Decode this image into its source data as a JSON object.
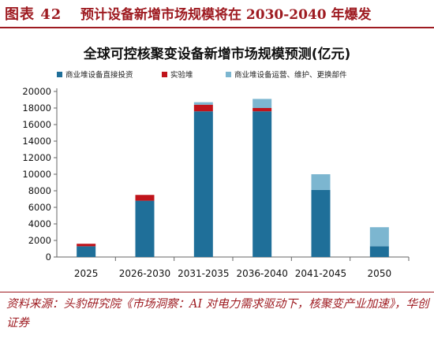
{
  "figure": {
    "number_label": "图表 42",
    "title": "预计设备新增市场规模将在 2030-2040 年爆发",
    "source": "资料来源：头豹研究院《市场洞察：AI 对电力需求驱动下，核聚变产业加速》，华创证券"
  },
  "colors": {
    "accent": "#9e1b21",
    "series_direct": "#1f6f99",
    "series_experimental": "#c0141b",
    "series_ops": "#7cb6d0"
  },
  "chart_data": {
    "type": "bar",
    "stacked": true,
    "title": "全球可控核聚变设备新增市场规模预测(亿元)",
    "categories": [
      "2025",
      "2026-2030",
      "2031-2035",
      "2036-2040",
      "2041-2045",
      "2050"
    ],
    "series": [
      {
        "name": "商业堆设备直接投资",
        "color": "#1f6f99",
        "values": [
          1300,
          6800,
          17600,
          17600,
          8100,
          1300
        ]
      },
      {
        "name": "实验堆",
        "color": "#c0141b",
        "values": [
          300,
          700,
          800,
          400,
          0,
          0
        ]
      },
      {
        "name": "商业堆设备运营、维护、更换部件",
        "color": "#7cb6d0",
        "values": [
          0,
          0,
          300,
          1100,
          1900,
          2300
        ]
      }
    ],
    "ylim": [
      0,
      20000
    ],
    "yticks": [
      "0",
      "2000",
      "4000",
      "6000",
      "8000",
      "10000",
      "12000",
      "14000",
      "16000",
      "18000",
      "20000"
    ],
    "grid": false,
    "legend_position": "top"
  }
}
